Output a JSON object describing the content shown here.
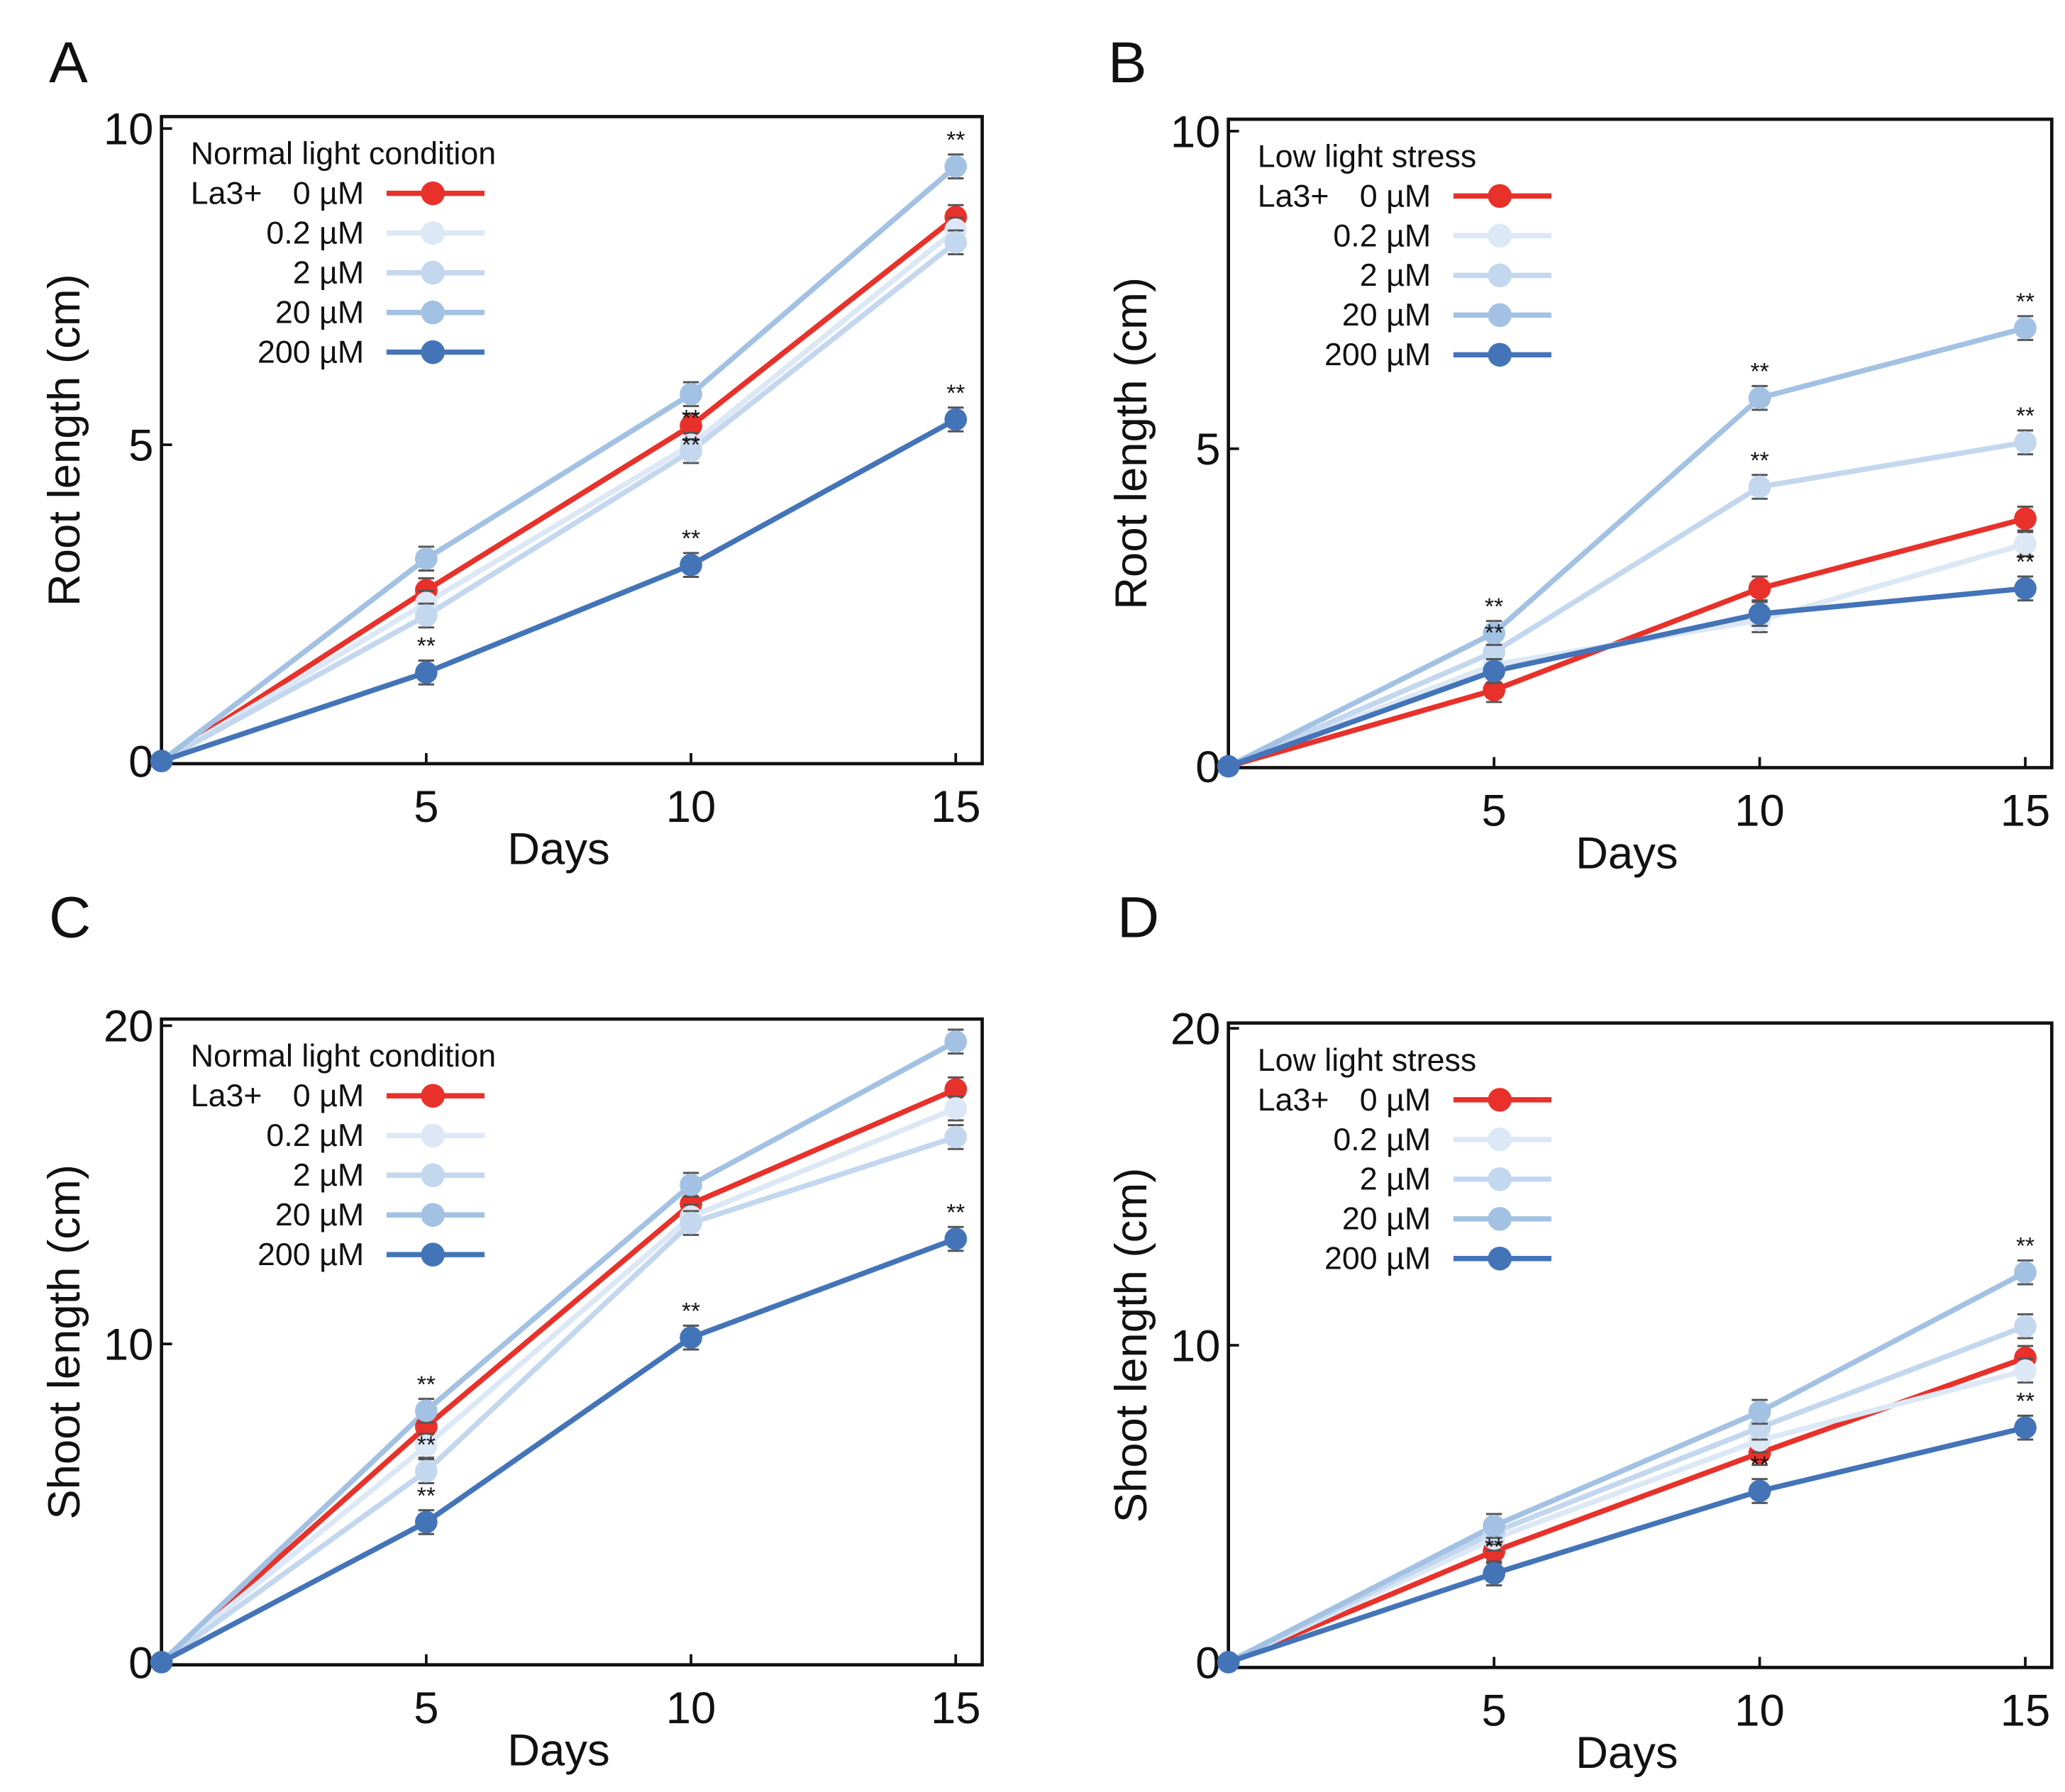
{
  "chart_data": [
    {
      "panel_label": "A",
      "type": "line",
      "legend_title": "Normal light condition",
      "legend_prefix": "La3+",
      "xlabel": "Days",
      "ylabel": "Root length (cm)",
      "x": [
        0,
        5,
        10,
        15
      ],
      "xticks": [
        "5",
        "10",
        "15"
      ],
      "ylim": [
        0,
        10
      ],
      "yticks": [
        "0",
        "5",
        "10"
      ],
      "series": [
        {
          "name": "0 µM",
          "color": "#e8312a",
          "values": [
            0,
            2.7,
            5.3,
            8.6
          ]
        },
        {
          "name": "0.2 µM",
          "color": "#dce8f5",
          "values": [
            0,
            2.5,
            5.0,
            8.4
          ]
        },
        {
          "name": "2 µM",
          "color": "#c3d7ee",
          "values": [
            0,
            2.3,
            4.9,
            8.2
          ]
        },
        {
          "name": "20 µM",
          "color": "#a3c1e3",
          "values": [
            0,
            3.2,
            5.8,
            9.4
          ]
        },
        {
          "name": "200 µM",
          "color": "#4474b8",
          "values": [
            0,
            1.4,
            3.1,
            5.4
          ]
        }
      ],
      "significance": [
        {
          "series": 4,
          "x": 5,
          "text": "**"
        },
        {
          "series": 4,
          "x": 10,
          "text": "**"
        },
        {
          "series": 4,
          "x": 15,
          "text": "**"
        },
        {
          "series": 3,
          "x": 15,
          "text": "**"
        },
        {
          "series": 1,
          "x": 10,
          "text": "**"
        },
        {
          "series": 2,
          "x": 10,
          "text": "**"
        }
      ]
    },
    {
      "panel_label": "B",
      "type": "line",
      "legend_title": "Low light stress",
      "legend_prefix": "La3+",
      "xlabel": "Days",
      "ylabel": "Root length (cm)",
      "x": [
        0,
        5,
        10,
        15
      ],
      "xticks": [
        "5",
        "10",
        "15"
      ],
      "ylim": [
        0,
        10
      ],
      "yticks": [
        "0",
        "5",
        "10"
      ],
      "series": [
        {
          "name": "0 µM",
          "color": "#e8312a",
          "values": [
            0,
            1.2,
            2.8,
            3.9
          ]
        },
        {
          "name": "0.2 µM",
          "color": "#dce8f5",
          "values": [
            0,
            1.6,
            2.3,
            3.5
          ]
        },
        {
          "name": "2 µM",
          "color": "#c3d7ee",
          "values": [
            0,
            1.8,
            4.4,
            5.1
          ]
        },
        {
          "name": "20 µM",
          "color": "#a3c1e3",
          "values": [
            0,
            2.1,
            5.8,
            6.9
          ]
        },
        {
          "name": "200 µM",
          "color": "#4474b8",
          "values": [
            0,
            1.5,
            2.4,
            2.8
          ]
        }
      ],
      "significance": [
        {
          "series": 3,
          "x": 5,
          "text": "**"
        },
        {
          "series": 2,
          "x": 5,
          "text": "**"
        },
        {
          "series": 3,
          "x": 10,
          "text": "**"
        },
        {
          "series": 2,
          "x": 10,
          "text": "**"
        },
        {
          "series": 3,
          "x": 15,
          "text": "**"
        },
        {
          "series": 2,
          "x": 15,
          "text": "**"
        },
        {
          "series": 4,
          "x": 15,
          "text": "**"
        }
      ]
    },
    {
      "panel_label": "C",
      "type": "line",
      "legend_title": "Normal light condition",
      "legend_prefix": "La3+",
      "xlabel": "Days",
      "ylabel": "Shoot length (cm)",
      "x": [
        0,
        5,
        10,
        15
      ],
      "xticks": [
        "5",
        "10",
        "15"
      ],
      "ylim": [
        0,
        20
      ],
      "yticks": [
        "0",
        "10",
        "20"
      ],
      "series": [
        {
          "name": "0 µM",
          "color": "#e8312a",
          "values": [
            0,
            7.4,
            14.4,
            18.0
          ]
        },
        {
          "name": "0.2 µM",
          "color": "#dce8f5",
          "values": [
            0,
            6.8,
            14.0,
            17.4
          ]
        },
        {
          "name": "2 µM",
          "color": "#c3d7ee",
          "values": [
            0,
            6.0,
            13.8,
            16.5
          ]
        },
        {
          "name": "20 µM",
          "color": "#a3c1e3",
          "values": [
            0,
            7.9,
            15.0,
            19.5
          ]
        },
        {
          "name": "200 µM",
          "color": "#4474b8",
          "values": [
            0,
            4.4,
            10.2,
            13.3
          ]
        }
      ],
      "significance": [
        {
          "series": 3,
          "x": 5,
          "text": "**"
        },
        {
          "series": 2,
          "x": 5,
          "text": "**"
        },
        {
          "series": 4,
          "x": 5,
          "text": "**"
        },
        {
          "series": 4,
          "x": 10,
          "text": "**"
        },
        {
          "series": 4,
          "x": 15,
          "text": "**"
        }
      ]
    },
    {
      "panel_label": "D",
      "type": "line",
      "legend_title": "Low light stress",
      "legend_prefix": "La3+",
      "xlabel": "Days",
      "ylabel": "Shoot length (cm)",
      "x": [
        0,
        5,
        10,
        15
      ],
      "xticks": [
        "5",
        "10",
        "15"
      ],
      "ylim": [
        0,
        20
      ],
      "yticks": [
        "0",
        "10",
        "20"
      ],
      "series": [
        {
          "name": "0 µM",
          "color": "#e8312a",
          "values": [
            0,
            3.5,
            6.6,
            9.6
          ]
        },
        {
          "name": "0.2 µM",
          "color": "#dce8f5",
          "values": [
            0,
            3.9,
            7.0,
            9.2
          ]
        },
        {
          "name": "2 µM",
          "color": "#c3d7ee",
          "values": [
            0,
            4.1,
            7.4,
            10.6
          ]
        },
        {
          "name": "20 µM",
          "color": "#a3c1e3",
          "values": [
            0,
            4.3,
            7.9,
            12.3
          ]
        },
        {
          "name": "200 µM",
          "color": "#4474b8",
          "values": [
            0,
            2.8,
            5.4,
            7.4
          ]
        }
      ],
      "significance": [
        {
          "series": 4,
          "x": 5,
          "text": "**"
        },
        {
          "series": 4,
          "x": 10,
          "text": "**"
        },
        {
          "series": 3,
          "x": 15,
          "text": "**"
        },
        {
          "series": 4,
          "x": 15,
          "text": "**"
        }
      ]
    }
  ]
}
